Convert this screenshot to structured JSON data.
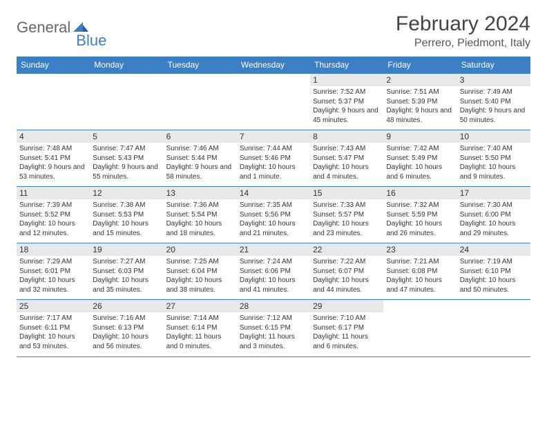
{
  "logo": {
    "text1": "General",
    "text2": "Blue"
  },
  "title": "February 2024",
  "location": "Perrero, Piedmont, Italy",
  "colors": {
    "accent": "#3b7fc4",
    "header_bg": "#3b7fc4",
    "day_bg": "#e8e8e8"
  },
  "day_headers": [
    "Sunday",
    "Monday",
    "Tuesday",
    "Wednesday",
    "Thursday",
    "Friday",
    "Saturday"
  ],
  "weeks": [
    [
      null,
      null,
      null,
      null,
      {
        "n": "1",
        "sunrise": "7:52 AM",
        "sunset": "5:37 PM",
        "daylight": "9 hours and 45 minutes."
      },
      {
        "n": "2",
        "sunrise": "7:51 AM",
        "sunset": "5:39 PM",
        "daylight": "9 hours and 48 minutes."
      },
      {
        "n": "3",
        "sunrise": "7:49 AM",
        "sunset": "5:40 PM",
        "daylight": "9 hours and 50 minutes."
      }
    ],
    [
      {
        "n": "4",
        "sunrise": "7:48 AM",
        "sunset": "5:41 PM",
        "daylight": "9 hours and 53 minutes."
      },
      {
        "n": "5",
        "sunrise": "7:47 AM",
        "sunset": "5:43 PM",
        "daylight": "9 hours and 55 minutes."
      },
      {
        "n": "6",
        "sunrise": "7:46 AM",
        "sunset": "5:44 PM",
        "daylight": "9 hours and 58 minutes."
      },
      {
        "n": "7",
        "sunrise": "7:44 AM",
        "sunset": "5:46 PM",
        "daylight": "10 hours and 1 minute."
      },
      {
        "n": "8",
        "sunrise": "7:43 AM",
        "sunset": "5:47 PM",
        "daylight": "10 hours and 4 minutes."
      },
      {
        "n": "9",
        "sunrise": "7:42 AM",
        "sunset": "5:49 PM",
        "daylight": "10 hours and 6 minutes."
      },
      {
        "n": "10",
        "sunrise": "7:40 AM",
        "sunset": "5:50 PM",
        "daylight": "10 hours and 9 minutes."
      }
    ],
    [
      {
        "n": "11",
        "sunrise": "7:39 AM",
        "sunset": "5:52 PM",
        "daylight": "10 hours and 12 minutes."
      },
      {
        "n": "12",
        "sunrise": "7:38 AM",
        "sunset": "5:53 PM",
        "daylight": "10 hours and 15 minutes."
      },
      {
        "n": "13",
        "sunrise": "7:36 AM",
        "sunset": "5:54 PM",
        "daylight": "10 hours and 18 minutes."
      },
      {
        "n": "14",
        "sunrise": "7:35 AM",
        "sunset": "5:56 PM",
        "daylight": "10 hours and 21 minutes."
      },
      {
        "n": "15",
        "sunrise": "7:33 AM",
        "sunset": "5:57 PM",
        "daylight": "10 hours and 23 minutes."
      },
      {
        "n": "16",
        "sunrise": "7:32 AM",
        "sunset": "5:59 PM",
        "daylight": "10 hours and 26 minutes."
      },
      {
        "n": "17",
        "sunrise": "7:30 AM",
        "sunset": "6:00 PM",
        "daylight": "10 hours and 29 minutes."
      }
    ],
    [
      {
        "n": "18",
        "sunrise": "7:29 AM",
        "sunset": "6:01 PM",
        "daylight": "10 hours and 32 minutes."
      },
      {
        "n": "19",
        "sunrise": "7:27 AM",
        "sunset": "6:03 PM",
        "daylight": "10 hours and 35 minutes."
      },
      {
        "n": "20",
        "sunrise": "7:25 AM",
        "sunset": "6:04 PM",
        "daylight": "10 hours and 38 minutes."
      },
      {
        "n": "21",
        "sunrise": "7:24 AM",
        "sunset": "6:06 PM",
        "daylight": "10 hours and 41 minutes."
      },
      {
        "n": "22",
        "sunrise": "7:22 AM",
        "sunset": "6:07 PM",
        "daylight": "10 hours and 44 minutes."
      },
      {
        "n": "23",
        "sunrise": "7:21 AM",
        "sunset": "6:08 PM",
        "daylight": "10 hours and 47 minutes."
      },
      {
        "n": "24",
        "sunrise": "7:19 AM",
        "sunset": "6:10 PM",
        "daylight": "10 hours and 50 minutes."
      }
    ],
    [
      {
        "n": "25",
        "sunrise": "7:17 AM",
        "sunset": "6:11 PM",
        "daylight": "10 hours and 53 minutes."
      },
      {
        "n": "26",
        "sunrise": "7:16 AM",
        "sunset": "6:13 PM",
        "daylight": "10 hours and 56 minutes."
      },
      {
        "n": "27",
        "sunrise": "7:14 AM",
        "sunset": "6:14 PM",
        "daylight": "11 hours and 0 minutes."
      },
      {
        "n": "28",
        "sunrise": "7:12 AM",
        "sunset": "6:15 PM",
        "daylight": "11 hours and 3 minutes."
      },
      {
        "n": "29",
        "sunrise": "7:10 AM",
        "sunset": "6:17 PM",
        "daylight": "11 hours and 6 minutes."
      },
      null,
      null
    ]
  ],
  "labels": {
    "sunrise": "Sunrise: ",
    "sunset": "Sunset: ",
    "daylight": "Daylight: "
  }
}
